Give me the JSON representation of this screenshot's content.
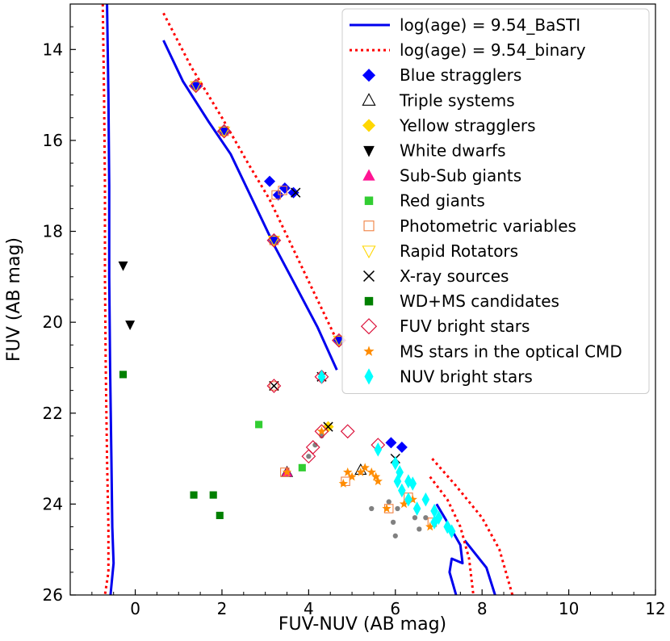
{
  "chart_data": {
    "type": "scatter",
    "title": "",
    "xlabel": "FUV-NUV (AB mag)",
    "ylabel": "FUV (AB mag)",
    "xlim": [
      -1.5,
      12
    ],
    "ylim": [
      26,
      13
    ],
    "xticks": [
      0,
      2,
      4,
      6,
      8,
      10,
      12
    ],
    "yticks": [
      14,
      16,
      18,
      20,
      22,
      24,
      26
    ],
    "grid": false,
    "legend_position": "top-right",
    "series": [
      {
        "name": "log(age) = 9.54_BaSTI",
        "kind": "line",
        "color": "#0000ee",
        "dash": "solid",
        "segments": [
          [
            [
              -0.65,
              13
            ],
            [
              -0.62,
              15
            ],
            [
              -0.6,
              17
            ],
            [
              -0.6,
              19
            ],
            [
              -0.58,
              21
            ],
            [
              -0.55,
              23
            ],
            [
              -0.53,
              24.5
            ],
            [
              -0.5,
              25.3
            ],
            [
              -0.57,
              26
            ]
          ],
          [
            [
              0.65,
              13.8
            ],
            [
              1.1,
              14.7
            ],
            [
              1.7,
              15.6
            ],
            [
              2.2,
              16.3
            ],
            [
              2.7,
              17.3
            ],
            [
              3.2,
              18.3
            ],
            [
              3.7,
              19.2
            ],
            [
              4.2,
              20.1
            ],
            [
              4.65,
              21.05
            ]
          ],
          [
            [
              6.95,
              24.0
            ],
            [
              7.2,
              24.4
            ],
            [
              7.5,
              24.9
            ],
            [
              7.55,
              25.3
            ],
            [
              7.3,
              25.2
            ],
            [
              7.25,
              25.5
            ],
            [
              7.4,
              26
            ]
          ],
          [
            [
              7.6,
              24.8
            ],
            [
              8.1,
              25.4
            ],
            [
              8.3,
              26
            ]
          ]
        ]
      },
      {
        "name": "log(age) = 9.54_binary",
        "kind": "line",
        "color": "#ff0000",
        "dash": "dotted",
        "segments": [
          [
            [
              -0.75,
              13
            ],
            [
              -0.72,
              15
            ],
            [
              -0.7,
              17
            ],
            [
              -0.7,
              19
            ],
            [
              -0.68,
              21
            ],
            [
              -0.65,
              23
            ],
            [
              -0.62,
              24.5
            ],
            [
              -0.62,
              25.5
            ],
            [
              -0.7,
              26
            ]
          ],
          [
            [
              0.65,
              13.2
            ],
            [
              1.3,
              14.4
            ],
            [
              2.0,
              15.5
            ],
            [
              2.6,
              16.5
            ],
            [
              3.1,
              17.3
            ],
            [
              3.6,
              18.3
            ],
            [
              4.1,
              19.3
            ],
            [
              4.7,
              20.5
            ]
          ],
          [
            [
              6.8,
              23.4
            ],
            [
              7.2,
              23.9
            ],
            [
              7.5,
              24.5
            ],
            [
              7.7,
              25.2
            ],
            [
              7.8,
              26
            ]
          ],
          [
            [
              6.85,
              23.0
            ],
            [
              7.4,
              23.6
            ],
            [
              8.0,
              24.3
            ],
            [
              8.4,
              25.0
            ],
            [
              8.7,
              26
            ]
          ]
        ]
      },
      {
        "name": "Blue stragglers",
        "marker": "diamond",
        "color": "#0000ff",
        "points": [
          [
            1.4,
            14.8
          ],
          [
            2.05,
            15.8
          ],
          [
            3.1,
            16.9
          ],
          [
            3.3,
            17.2
          ],
          [
            3.45,
            17.05
          ],
          [
            3.65,
            17.15
          ],
          [
            3.2,
            18.2
          ],
          [
            4.7,
            20.4
          ],
          [
            5.9,
            22.65
          ],
          [
            6.15,
            22.75
          ]
        ]
      },
      {
        "name": "Triple systems",
        "marker": "triangle-up-open",
        "color": "#000000",
        "points": [
          [
            5.2,
            23.25
          ],
          [
            3.5,
            23.3
          ]
        ]
      },
      {
        "name": "Yellow stragglers",
        "marker": "diamond",
        "color": "#ffd700",
        "points": [
          [
            4.45,
            22.3
          ]
        ]
      },
      {
        "name": "White dwarfs",
        "marker": "triangle-down",
        "color": "#000000",
        "points": [
          [
            -0.28,
            18.75
          ],
          [
            -0.12,
            20.05
          ]
        ]
      },
      {
        "name": "Sub-Sub giants",
        "marker": "triangle-up",
        "color": "#ff1493",
        "points": [
          [
            3.5,
            23.3
          ]
        ]
      },
      {
        "name": "Red giants",
        "marker": "square",
        "color": "#32cd32",
        "points": [
          [
            2.85,
            22.25
          ],
          [
            3.85,
            23.2
          ]
        ]
      },
      {
        "name": "Photometric variables",
        "marker": "square-open",
        "color": "#f08040",
        "points": [
          [
            2.05,
            15.8
          ],
          [
            3.25,
            17.2
          ],
          [
            3.4,
            17.1
          ],
          [
            3.2,
            18.2
          ],
          [
            3.2,
            21.4
          ],
          [
            3.45,
            23.3
          ],
          [
            5.85,
            24.1
          ],
          [
            4.85,
            23.5
          ],
          [
            6.3,
            23.85
          ],
          [
            6.85,
            24.4
          ]
        ]
      },
      {
        "name": "Rapid Rotators",
        "marker": "triangle-down-open",
        "color": "#ffd700",
        "points": [
          [
            1.4,
            14.8
          ],
          [
            2.05,
            15.8
          ],
          [
            3.2,
            18.2
          ],
          [
            4.7,
            20.4
          ]
        ]
      },
      {
        "name": "X-ray sources",
        "marker": "x",
        "color": "#000000",
        "points": [
          [
            3.2,
            21.4
          ],
          [
            4.3,
            21.2
          ],
          [
            3.7,
            17.15
          ],
          [
            4.45,
            22.3
          ],
          [
            6.0,
            23.0
          ]
        ]
      },
      {
        "name": "WD+MS candidates",
        "marker": "square",
        "color": "#008000",
        "points": [
          [
            -0.28,
            21.15
          ],
          [
            1.35,
            23.8
          ],
          [
            1.8,
            23.8
          ],
          [
            1.95,
            24.25
          ]
        ]
      },
      {
        "name": "FUV bright stars",
        "marker": "diamond-open",
        "color": "#dc143c",
        "points": [
          [
            1.4,
            14.8
          ],
          [
            2.05,
            15.8
          ],
          [
            3.2,
            18.2
          ],
          [
            3.2,
            21.4
          ],
          [
            4.3,
            21.2
          ],
          [
            4.3,
            22.4
          ],
          [
            4.9,
            22.4
          ],
          [
            4.1,
            22.75
          ],
          [
            4.0,
            22.95
          ],
          [
            5.6,
            22.7
          ],
          [
            4.7,
            20.4
          ]
        ]
      },
      {
        "name": "MS stars in the optical CMD",
        "marker": "star",
        "color": "#ff8c00",
        "points": [
          [
            4.9,
            23.3
          ],
          [
            5.0,
            23.4
          ],
          [
            5.2,
            23.3
          ],
          [
            5.3,
            23.2
          ],
          [
            5.45,
            23.3
          ],
          [
            5.55,
            23.4
          ],
          [
            5.6,
            23.5
          ],
          [
            4.8,
            23.55
          ],
          [
            4.3,
            22.4
          ],
          [
            5.8,
            24.1
          ],
          [
            6.2,
            24.0
          ],
          [
            6.4,
            23.9
          ],
          [
            6.8,
            24.5
          ],
          [
            3.5,
            23.3
          ]
        ]
      },
      {
        "name": "NUV bright stars",
        "marker": "thin-diamond",
        "color": "#00ffff",
        "points": [
          [
            4.3,
            21.2
          ],
          [
            5.6,
            22.8
          ],
          [
            6.0,
            23.1
          ],
          [
            6.1,
            23.3
          ],
          [
            6.05,
            23.5
          ],
          [
            6.3,
            23.5
          ],
          [
            6.4,
            23.55
          ],
          [
            6.15,
            23.7
          ],
          [
            6.3,
            23.9
          ],
          [
            6.5,
            24.1
          ],
          [
            6.7,
            23.9
          ],
          [
            6.9,
            24.15
          ],
          [
            7.0,
            24.3
          ],
          [
            7.2,
            24.5
          ],
          [
            7.3,
            24.6
          ],
          [
            6.9,
            24.4
          ]
        ]
      },
      {
        "name": "",
        "marker": "dot",
        "color": "#808080",
        "points": [
          [
            4.3,
            22.5
          ],
          [
            4.15,
            22.7
          ],
          [
            4.0,
            22.95
          ],
          [
            5.45,
            24.1
          ],
          [
            5.85,
            23.95
          ],
          [
            6.05,
            24.1
          ],
          [
            6.45,
            24.3
          ],
          [
            6.0,
            24.7
          ],
          [
            6.55,
            24.55
          ],
          [
            6.7,
            24.3
          ],
          [
            5.95,
            24.4
          ]
        ]
      }
    ]
  }
}
